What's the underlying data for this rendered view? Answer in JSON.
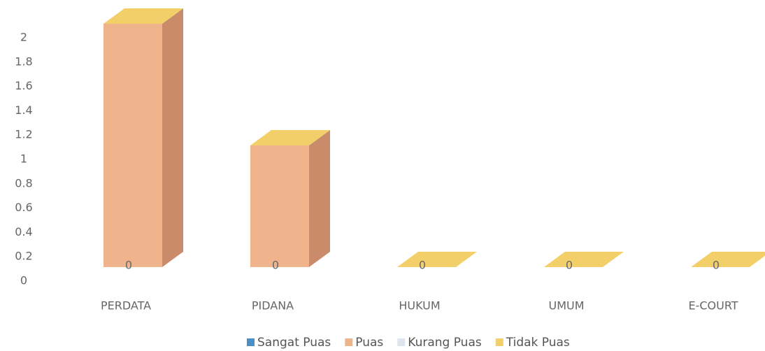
{
  "chart_data": {
    "type": "bar3d",
    "categories": [
      "PERDATA",
      "PIDANA",
      "HUKUM",
      "UMUM",
      "E-COURT"
    ],
    "series": [
      {
        "name": "Sangat Puas",
        "color": "#4a90c8",
        "values": [
          0,
          0,
          0,
          0,
          0
        ]
      },
      {
        "name": "Puas",
        "color": "#f0b48c",
        "values": [
          2,
          1,
          0,
          0,
          0
        ]
      },
      {
        "name": "Kurang Puas",
        "color": "#dfe5ee",
        "values": [
          0,
          0,
          0,
          0,
          0
        ]
      },
      {
        "name": "Tidak Puas",
        "color": "#f3cf6a",
        "values": [
          0,
          0,
          0,
          0,
          0
        ]
      }
    ],
    "ylim": [
      0,
      2
    ],
    "yticks": [
      0,
      0.2,
      0.4,
      0.6,
      0.8,
      1,
      1.2,
      1.4,
      1.6,
      1.8,
      2
    ],
    "grid": false
  }
}
